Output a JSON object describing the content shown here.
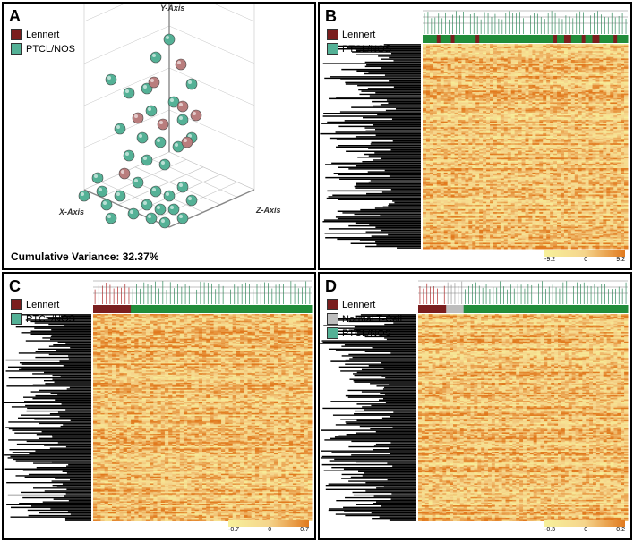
{
  "global": {
    "colors": {
      "lennert": "#7a1e1e",
      "ptcl": "#54b196",
      "normal_tcell": "#bdbdbd",
      "panel_border": "#000000",
      "heatmap_low": "#f7f09a",
      "heatmap_mid": "#f5d58c",
      "heatmap_high": "#e17a1e",
      "dendro_row": "#000000"
    }
  },
  "panelA": {
    "letter": "A",
    "legend": [
      {
        "label": "Lennert",
        "color": "#7a1e1e"
      },
      {
        "label": "PTCL/NOS",
        "color": "#54b196"
      }
    ],
    "cumulative_variance": "Cumulative Variance: 32.37%",
    "axis_labels": {
      "x": "X-Axis",
      "y": "Y-Axis",
      "z": "Z-Axis"
    },
    "grid_color": "#c4c4c4",
    "tick_color": "#9e9e9e",
    "points": {
      "radius": 6,
      "ptcl": [
        [
          170,
          60
        ],
        [
          185,
          40
        ],
        [
          120,
          85
        ],
        [
          140,
          100
        ],
        [
          160,
          95
        ],
        [
          190,
          110
        ],
        [
          165,
          120
        ],
        [
          200,
          130
        ],
        [
          210,
          90
        ],
        [
          130,
          140
        ],
        [
          155,
          150
        ],
        [
          175,
          155
        ],
        [
          195,
          160
        ],
        [
          210,
          150
        ],
        [
          140,
          170
        ],
        [
          160,
          175
        ],
        [
          180,
          180
        ],
        [
          150,
          200
        ],
        [
          170,
          210
        ],
        [
          185,
          215
        ],
        [
          200,
          205
        ],
        [
          130,
          215
        ],
        [
          160,
          225
        ],
        [
          175,
          230
        ],
        [
          190,
          230
        ],
        [
          210,
          220
        ],
        [
          145,
          235
        ],
        [
          165,
          240
        ],
        [
          180,
          245
        ],
        [
          200,
          240
        ],
        [
          105,
          195
        ],
        [
          115,
          225
        ],
        [
          90,
          215
        ],
        [
          110,
          210
        ],
        [
          120,
          240
        ]
      ],
      "lennert": [
        [
          198,
          68
        ],
        [
          168,
          88
        ],
        [
          200,
          115
        ],
        [
          178,
          135
        ],
        [
          150,
          128
        ],
        [
          205,
          155
        ],
        [
          215,
          125
        ],
        [
          135,
          190
        ]
      ]
    }
  },
  "panelB": {
    "letter": "B",
    "legend": [
      {
        "label": "Lennert",
        "color": "#7a1e1e"
      },
      {
        "label": "PTCL/NOS",
        "color": "#54b196"
      }
    ],
    "scale": {
      "min": "-9.2",
      "mid": "0",
      "max": "9.2"
    },
    "col_dendro_color": "#2f8a5a",
    "col_annotation": [
      "P",
      "P",
      "P",
      "P",
      "L",
      "P",
      "P",
      "P",
      "L",
      "P",
      "P",
      "P",
      "P",
      "P",
      "P",
      "L",
      "P",
      "P",
      "P",
      "P",
      "P",
      "P",
      "P",
      "P",
      "P",
      "P",
      "P",
      "P",
      "P",
      "P",
      "P",
      "P",
      "P",
      "P",
      "P",
      "P",
      "P",
      "L",
      "P",
      "P",
      "L",
      "L",
      "P",
      "P",
      "P",
      "L",
      "P",
      "P",
      "L",
      "L",
      "P",
      "P",
      "P",
      "P",
      "L",
      "P",
      "P",
      "P"
    ],
    "heatmap_seed": 21
  },
  "panelC": {
    "letter": "C",
    "legend": [
      {
        "label": "Lennert",
        "color": "#7a1e1e"
      },
      {
        "label": "PTCL/NOS",
        "color": "#54b196"
      }
    ],
    "scale": {
      "min": "-0.7",
      "mid": "0",
      "max": "0.7"
    },
    "col_dendro_colors": {
      "left": "#b02a2a",
      "right": "#2f8a5a"
    },
    "col_annotation": [
      "L",
      "L",
      "L",
      "L",
      "L",
      "L",
      "L",
      "L",
      "L",
      "L",
      "P",
      "P",
      "P",
      "P",
      "P",
      "P",
      "P",
      "P",
      "P",
      "P",
      "P",
      "P",
      "P",
      "P",
      "P",
      "P",
      "P",
      "P",
      "P",
      "P",
      "P",
      "P",
      "P",
      "P",
      "P",
      "P",
      "P",
      "P",
      "P",
      "P",
      "P",
      "P",
      "P",
      "P",
      "P",
      "P",
      "P",
      "P",
      "P",
      "P",
      "P",
      "P",
      "P",
      "P",
      "P",
      "P",
      "P",
      "P"
    ],
    "heatmap_seed": 37
  },
  "panelD": {
    "letter": "D",
    "legend": [
      {
        "label": "Lennert",
        "color": "#7a1e1e"
      },
      {
        "label": "Normal T-Cell",
        "color": "#bdbdbd"
      },
      {
        "label": "PTCL/NOS",
        "color": "#54b196"
      }
    ],
    "scale": {
      "min": "-0.3",
      "mid": "0",
      "max": "0.2"
    },
    "col_dendro_colors": {
      "left": "#b02a2a",
      "mid": "#9a9a9a",
      "right": "#2f8a5a"
    },
    "col_annotation": [
      "L",
      "L",
      "L",
      "L",
      "L",
      "L",
      "L",
      "L",
      "N",
      "N",
      "N",
      "N",
      "N",
      "P",
      "P",
      "P",
      "P",
      "P",
      "P",
      "P",
      "P",
      "P",
      "P",
      "P",
      "P",
      "P",
      "P",
      "P",
      "P",
      "P",
      "P",
      "P",
      "P",
      "P",
      "P",
      "P",
      "P",
      "P",
      "P",
      "P",
      "P",
      "P",
      "P",
      "P",
      "P",
      "P",
      "P",
      "P",
      "P",
      "P",
      "P",
      "P",
      "P",
      "P",
      "P",
      "P",
      "P",
      "P",
      "P",
      "P"
    ],
    "heatmap_seed": 53
  }
}
